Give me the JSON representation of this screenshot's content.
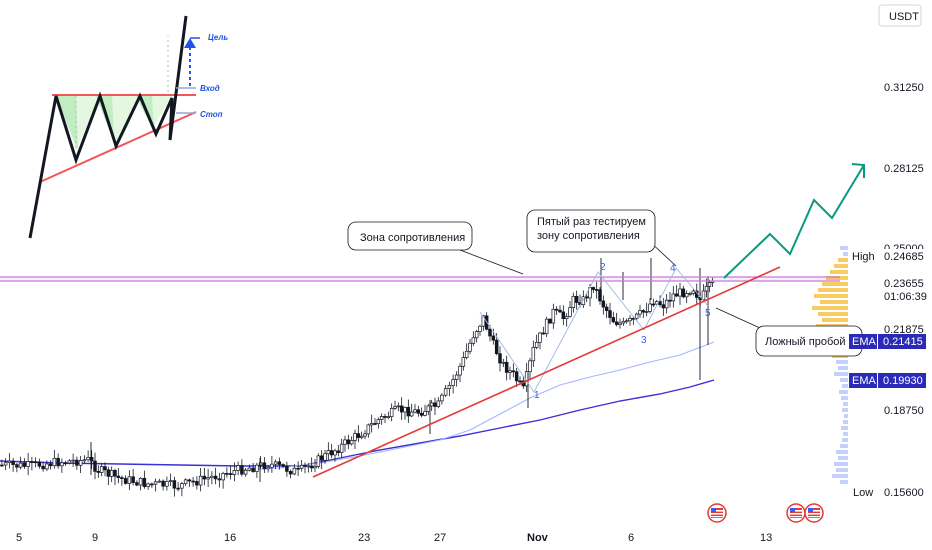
{
  "currency": "USDT",
  "chart_data": {
    "type": "candlestick",
    "x_ticks": [
      "5",
      "9",
      "16",
      "23",
      "27",
      "Nov",
      "6",
      "13"
    ],
    "y_ticks": [
      "0.31250",
      "0.28125",
      "0.25000",
      "0.21875",
      "0.18750"
    ],
    "price_tags": {
      "high": {
        "label": "High",
        "value": "0.24685"
      },
      "last": {
        "value": "0.23655",
        "countdown": "01:06:39"
      },
      "ema1": {
        "label": "EMA",
        "value": "0.21415"
      },
      "ema2": {
        "label": "EMA",
        "value": "0.19930"
      },
      "low": {
        "label": "Low",
        "value": "0.15600"
      }
    },
    "annotations": {
      "resistance_zone": "Зона сопротивления",
      "fifth_test": [
        "Пятый раз тестируем",
        "зону сопротивления"
      ],
      "false_breakout": "Ложный пробой",
      "wave_numbers": [
        "1",
        "2",
        "3",
        "4",
        "5"
      ]
    },
    "scheme": {
      "target": "Цель",
      "entry": "Вход",
      "stop": "Стоп"
    },
    "colors": {
      "up": "#ffffff",
      "down": "#131722",
      "trendline": "#e53935",
      "resistance": "#c77bd4",
      "ema_fast": "#a7b6ff",
      "ema_slow": "#3b2fd6",
      "projection": "#089981",
      "ema_tag": "#2b2ab8",
      "volume_profile": "#f7c248"
    }
  }
}
